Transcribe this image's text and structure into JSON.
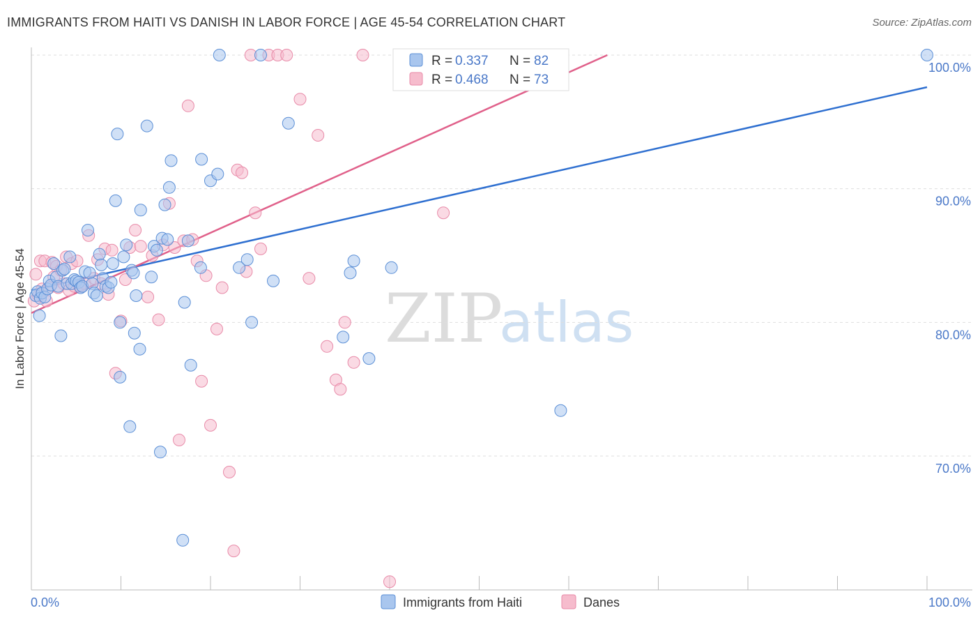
{
  "title": "IMMIGRANTS FROM HAITI VS DANISH IN LABOR FORCE | AGE 45-54 CORRELATION CHART",
  "source": "Source: ZipAtlas.com",
  "watermark": {
    "part1": "ZIP",
    "part2": "atlas"
  },
  "colors": {
    "haiti_fill": "#a9c6ee",
    "haiti_stroke": "#5b8fd6",
    "haiti_line": "#2e6fd0",
    "danes_fill": "#f6bccd",
    "danes_stroke": "#e88aa8",
    "danes_line": "#e0608a",
    "tick_text": "#4a78c8",
    "grid": "#dddddd"
  },
  "legend": {
    "r_label": "R = ",
    "n_label": "N = ",
    "rows": [
      {
        "r": "0.337",
        "n": "82"
      },
      {
        "r": "0.468",
        "n": "73"
      }
    ]
  },
  "chart_data": {
    "type": "scatter",
    "title": "IMMIGRANTS FROM HAITI VS DANISH IN LABOR FORCE | AGE 45-54 CORRELATION CHART",
    "xlabel": "",
    "ylabel": "In Labor Force | Age 45-54",
    "xlim": [
      0,
      100
    ],
    "ylim": [
      60.5,
      101
    ],
    "x_tick_labels": [
      "0.0%",
      "100.0%"
    ],
    "y_ticks": [
      70,
      80,
      90,
      100
    ],
    "y_tick_labels": [
      "70.0%",
      "80.0%",
      "90.0%",
      "100.0%"
    ],
    "grid": "horizontal dashed",
    "legend_position": "top-center",
    "series": [
      {
        "name": "Immigrants from Haiti",
        "r": 0.337,
        "n": 82,
        "trend": [
          [
            0,
            82.4
          ],
          [
            100,
            97.6
          ]
        ],
        "points": [
          [
            0.5,
            82.0
          ],
          [
            0.7,
            82.3
          ],
          [
            0.9,
            80.5
          ],
          [
            1.0,
            81.8
          ],
          [
            1.2,
            82.2
          ],
          [
            1.5,
            81.9
          ],
          [
            1.8,
            82.5
          ],
          [
            2.0,
            83.1
          ],
          [
            2.2,
            82.8
          ],
          [
            2.5,
            84.4
          ],
          [
            2.8,
            83.4
          ],
          [
            3.0,
            82.7
          ],
          [
            3.3,
            79.0
          ],
          [
            3.5,
            83.9
          ],
          [
            3.7,
            84.0
          ],
          [
            4.0,
            82.9
          ],
          [
            4.3,
            84.9
          ],
          [
            4.5,
            82.9
          ],
          [
            4.8,
            83.2
          ],
          [
            5.0,
            83.1
          ],
          [
            5.3,
            83.0
          ],
          [
            5.5,
            82.6
          ],
          [
            5.7,
            82.7
          ],
          [
            6.0,
            83.8
          ],
          [
            6.3,
            86.9
          ],
          [
            6.5,
            83.7
          ],
          [
            6.8,
            82.9
          ],
          [
            7.0,
            82.2
          ],
          [
            7.3,
            82.0
          ],
          [
            7.6,
            85.1
          ],
          [
            7.8,
            84.3
          ],
          [
            8.0,
            83.3
          ],
          [
            8.3,
            82.7
          ],
          [
            8.6,
            82.6
          ],
          [
            8.9,
            83.0
          ],
          [
            9.1,
            84.4
          ],
          [
            9.4,
            89.1
          ],
          [
            9.6,
            94.1
          ],
          [
            9.9,
            80.0
          ],
          [
            9.9,
            75.9
          ],
          [
            10.3,
            84.9
          ],
          [
            10.6,
            85.8
          ],
          [
            11.0,
            72.2
          ],
          [
            11.2,
            83.9
          ],
          [
            11.4,
            83.7
          ],
          [
            11.5,
            79.2
          ],
          [
            11.7,
            82.0
          ],
          [
            12.1,
            78.0
          ],
          [
            12.2,
            88.4
          ],
          [
            12.9,
            94.7
          ],
          [
            13.4,
            83.4
          ],
          [
            13.7,
            85.7
          ],
          [
            14.0,
            85.4
          ],
          [
            14.4,
            70.3
          ],
          [
            14.6,
            86.3
          ],
          [
            14.9,
            88.8
          ],
          [
            15.2,
            86.2
          ],
          [
            15.4,
            90.1
          ],
          [
            15.6,
            92.1
          ],
          [
            16.9,
            63.7
          ],
          [
            17.1,
            81.5
          ],
          [
            17.5,
            86.1
          ],
          [
            17.8,
            76.8
          ],
          [
            18.9,
            84.1
          ],
          [
            19.0,
            92.2
          ],
          [
            20.0,
            90.6
          ],
          [
            20.8,
            91.1
          ],
          [
            21.0,
            100.0
          ],
          [
            23.2,
            84.1
          ],
          [
            24.1,
            84.7
          ],
          [
            24.6,
            80.0
          ],
          [
            25.6,
            100.0
          ],
          [
            27.0,
            83.1
          ],
          [
            28.7,
            94.9
          ],
          [
            34.8,
            78.9
          ],
          [
            35.6,
            83.7
          ],
          [
            36.0,
            84.6
          ],
          [
            37.7,
            77.3
          ],
          [
            40.2,
            84.1
          ],
          [
            44.9,
            100.0
          ],
          [
            50.0,
            100.0
          ],
          [
            59.1,
            73.4
          ],
          [
            100.0,
            100.0
          ]
        ]
      },
      {
        "name": "Danes",
        "r": 0.468,
        "n": 73,
        "trend": [
          [
            0,
            80.7
          ],
          [
            64.3,
            100.0
          ]
        ],
        "points": [
          [
            0.3,
            81.6
          ],
          [
            0.5,
            83.6
          ],
          [
            0.8,
            82.0
          ],
          [
            1.0,
            84.6
          ],
          [
            1.2,
            82.5
          ],
          [
            1.5,
            84.6
          ],
          [
            1.7,
            81.6
          ],
          [
            2.0,
            82.6
          ],
          [
            2.3,
            84.5
          ],
          [
            2.5,
            83.4
          ],
          [
            2.8,
            84.2
          ],
          [
            3.0,
            82.6
          ],
          [
            3.3,
            83.9
          ],
          [
            3.6,
            82.9
          ],
          [
            3.9,
            84.9
          ],
          [
            4.2,
            82.4
          ],
          [
            4.5,
            84.4
          ],
          [
            4.8,
            82.7
          ],
          [
            5.1,
            84.6
          ],
          [
            5.4,
            82.7
          ],
          [
            5.7,
            82.7
          ],
          [
            6.0,
            82.9
          ],
          [
            6.4,
            86.5
          ],
          [
            7.0,
            83.3
          ],
          [
            7.4,
            84.7
          ],
          [
            7.8,
            82.9
          ],
          [
            8.2,
            85.5
          ],
          [
            8.6,
            82.1
          ],
          [
            9.0,
            85.4
          ],
          [
            9.4,
            76.2
          ],
          [
            10.0,
            80.1
          ],
          [
            10.5,
            83.2
          ],
          [
            11.0,
            85.6
          ],
          [
            11.6,
            86.9
          ],
          [
            12.2,
            85.7
          ],
          [
            13.0,
            81.9
          ],
          [
            13.5,
            85.0
          ],
          [
            14.2,
            80.2
          ],
          [
            14.7,
            85.8
          ],
          [
            15.4,
            88.9
          ],
          [
            16.0,
            85.6
          ],
          [
            16.5,
            71.2
          ],
          [
            17.0,
            86.1
          ],
          [
            17.5,
            96.2
          ],
          [
            18.0,
            86.2
          ],
          [
            18.5,
            84.6
          ],
          [
            19.0,
            75.6
          ],
          [
            19.5,
            83.5
          ],
          [
            20.0,
            72.3
          ],
          [
            20.7,
            79.5
          ],
          [
            21.3,
            82.6
          ],
          [
            22.1,
            68.8
          ],
          [
            22.6,
            62.9
          ],
          [
            23.0,
            91.4
          ],
          [
            23.5,
            91.2
          ],
          [
            24.0,
            83.8
          ],
          [
            24.5,
            100.0
          ],
          [
            25.0,
            88.2
          ],
          [
            25.6,
            85.5
          ],
          [
            26.5,
            100.0
          ],
          [
            27.5,
            100.0
          ],
          [
            28.5,
            100.0
          ],
          [
            30.0,
            96.7
          ],
          [
            31.0,
            83.3
          ],
          [
            32.0,
            94.0
          ],
          [
            33.0,
            78.2
          ],
          [
            34.0,
            75.7
          ],
          [
            34.5,
            75.0
          ],
          [
            35.0,
            80.0
          ],
          [
            36.0,
            77.0
          ],
          [
            37.0,
            100.0
          ],
          [
            40.0,
            60.6
          ],
          [
            46.0,
            88.2
          ]
        ]
      }
    ]
  }
}
